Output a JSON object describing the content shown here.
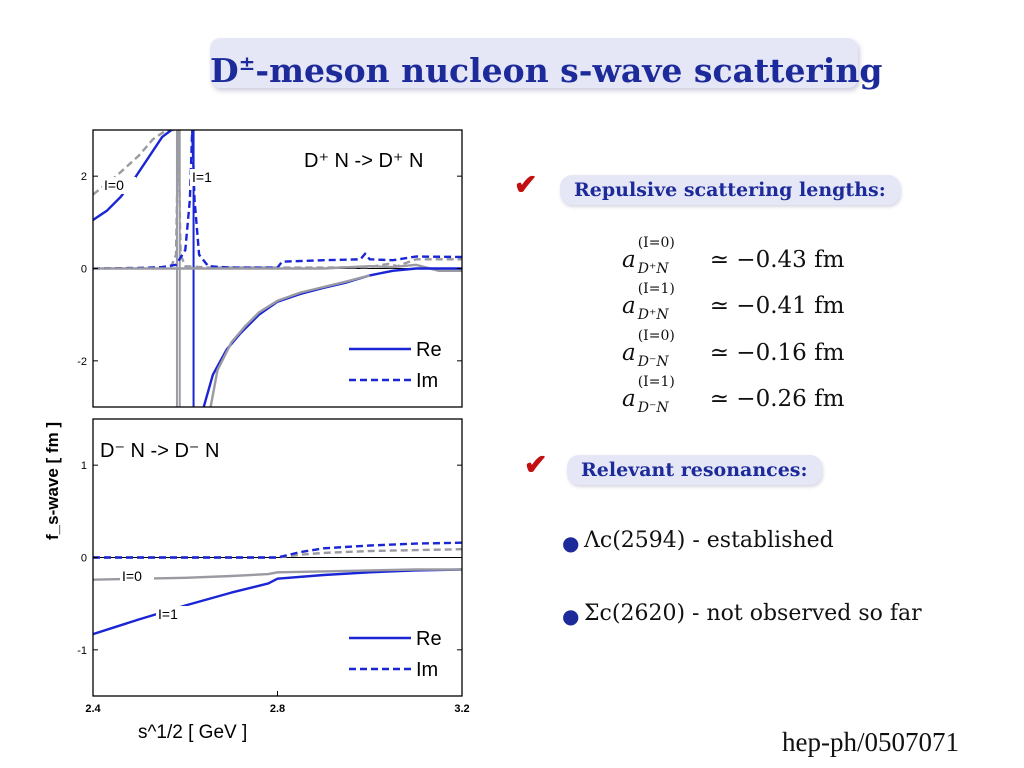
{
  "slide": {
    "title_base": "D",
    "title_sup": "±",
    "title_rest": "-meson nucleon s-wave scattering",
    "reference": "hep-ph/0507071"
  },
  "points": {
    "scattering_header": "Repulsive scattering lengths:",
    "resonance_header": "Relevant resonances:",
    "scattering_lengths": [
      {
        "isospin": "(I=0)",
        "channel": "D⁺N",
        "value": "≃ −0.43 fm"
      },
      {
        "isospin": "(I=1)",
        "channel": "D⁺N",
        "value": "≃ −0.41 fm"
      },
      {
        "isospin": "(I=0)",
        "channel": "D⁻N",
        "value": "≃ −0.16 fm"
      },
      {
        "isospin": "(I=1)",
        "channel": "D⁻N",
        "value": "≃ −0.26 fm"
      }
    ],
    "resonances": [
      "Λc(2594) - established",
      "Σc(2620) - not observed so far"
    ]
  },
  "colors": {
    "accent": "#1d2a9a",
    "check": "#c21010",
    "pill_bg": "#e5e7f6",
    "curve_blue": "#1a25d6",
    "curve_gray": "#9a9aa2"
  },
  "chart_data": [
    {
      "type": "line",
      "panel": "top",
      "title": "D⁺ N  -> D⁺ N",
      "ylabel": "f_s-wave [ fm ]",
      "xlim": [
        2.4,
        3.2
      ],
      "ylim": [
        -3.0,
        3.0
      ],
      "yticks": [
        2,
        0,
        -2
      ],
      "ytick_labels": [
        "2",
        "0",
        "-2"
      ],
      "grid": false,
      "legend": {
        "position": "bottom-right",
        "entries": [
          "Re",
          "Im"
        ]
      },
      "annotations": [
        "I=0",
        "I=1"
      ],
      "series": [
        {
          "kind": "gray",
          "style": "dash",
          "x": [
            2.4,
            2.45,
            2.5,
            2.53,
            2.56,
            2.585
          ],
          "y": [
            1.6,
            2.0,
            2.45,
            2.8,
            3.0,
            3.0
          ]
        },
        {
          "kind": "blue",
          "style": "solid",
          "x": [
            2.4,
            2.43,
            2.46,
            2.49,
            2.52,
            2.55,
            2.57
          ],
          "y": [
            1.05,
            1.25,
            1.55,
            1.95,
            2.4,
            2.85,
            3.0
          ]
        },
        {
          "kind": "gray",
          "style": "dash",
          "x": [
            2.4,
            2.5,
            2.55,
            2.57,
            2.58,
            2.585,
            2.59,
            2.6,
            2.65,
            2.7,
            2.8,
            2.9,
            3.0,
            3.04,
            3.06,
            3.1,
            3.2
          ],
          "y": [
            0,
            0.01,
            0.02,
            0.05,
            0.3,
            3.0,
            0.3,
            0.05,
            0.02,
            0.02,
            0.02,
            0.02,
            0.03,
            0.1,
            0.05,
            0.2,
            0.2
          ]
        },
        {
          "kind": "blue",
          "style": "dash",
          "x": [
            2.4,
            2.5,
            2.55,
            2.58,
            2.6,
            2.61,
            2.615,
            2.62,
            2.63,
            2.65,
            2.7,
            2.8,
            2.81,
            2.9,
            2.98,
            2.99,
            3.0,
            3.05,
            3.1,
            3.2
          ],
          "y": [
            0,
            0.01,
            0.03,
            0.08,
            0.4,
            1.5,
            3.0,
            1.5,
            0.3,
            0.05,
            0.02,
            0.02,
            0.15,
            0.18,
            0.2,
            0.32,
            0.2,
            0.18,
            0.26,
            0.25
          ]
        },
        {
          "kind": "gray",
          "style": "solid",
          "x": [
            2.4,
            2.5,
            2.58,
            2.6,
            2.65,
            2.7,
            2.8,
            2.9,
            3.0,
            3.05,
            3.1,
            3.15,
            3.2
          ],
          "y": [
            0,
            0,
            0,
            0,
            0,
            0,
            0,
            0,
            0.05,
            0.03,
            0.08,
            -0.05,
            -0.05
          ]
        },
        {
          "kind": "blue",
          "style": "solid",
          "x": [
            2.64,
            2.66,
            2.69,
            2.72,
            2.76,
            2.8,
            2.85,
            2.9,
            2.95,
            3.0,
            3.05,
            3.1,
            3.2
          ],
          "y": [
            -3.0,
            -2.3,
            -1.75,
            -1.4,
            -1.0,
            -0.72,
            -0.55,
            -0.42,
            -0.3,
            -0.15,
            -0.05,
            0.0,
            0.0
          ]
        },
        {
          "kind": "gray",
          "style": "solid",
          "x": [
            2.655,
            2.67,
            2.7,
            2.73,
            2.76,
            2.8,
            2.85,
            2.9,
            2.95,
            3.0
          ],
          "y": [
            -3.0,
            -2.2,
            -1.6,
            -1.25,
            -0.95,
            -0.7,
            -0.52,
            -0.4,
            -0.28,
            -0.15
          ]
        }
      ],
      "verticals": [
        {
          "kind": "gray",
          "x": 2.582
        },
        {
          "kind": "gray",
          "x": 2.588
        },
        {
          "kind": "blue",
          "x": 2.618
        }
      ]
    },
    {
      "type": "line",
      "panel": "bottom",
      "title": "D⁻ N  -> D⁻ N",
      "xlabel": "s^1/2 [ GeV ]",
      "xlim": [
        2.4,
        3.2
      ],
      "ylim": [
        -1.5,
        1.5
      ],
      "xticks": [
        2.4,
        2.8,
        3.2
      ],
      "xtick_labels": [
        "2.4",
        "2.8",
        "3.2"
      ],
      "yticks": [
        1,
        0,
        -1
      ],
      "ytick_labels": [
        "1",
        "0",
        "-1"
      ],
      "grid": false,
      "legend": {
        "position": "bottom-right",
        "entries": [
          "Re",
          "Im"
        ]
      },
      "annotations": [
        "I=0",
        "I=1"
      ],
      "series": [
        {
          "kind": "blue",
          "style": "solid",
          "x": [
            2.4,
            2.5,
            2.6,
            2.7,
            2.78,
            2.8,
            2.9,
            3.0,
            3.1,
            3.2
          ],
          "y": [
            -0.83,
            -0.67,
            -0.52,
            -0.38,
            -0.28,
            -0.23,
            -0.19,
            -0.16,
            -0.14,
            -0.13
          ]
        },
        {
          "kind": "gray",
          "style": "solid",
          "x": [
            2.4,
            2.5,
            2.6,
            2.7,
            2.78,
            2.8,
            2.9,
            3.0,
            3.1,
            3.2
          ],
          "y": [
            -0.24,
            -0.23,
            -0.22,
            -0.2,
            -0.18,
            -0.16,
            -0.15,
            -0.14,
            -0.13,
            -0.13
          ]
        },
        {
          "kind": "gray",
          "style": "dash",
          "x": [
            2.4,
            2.6,
            2.8,
            2.85,
            2.9,
            3.0,
            3.1,
            3.2
          ],
          "y": [
            0.0,
            0.0,
            0.0,
            0.03,
            0.05,
            0.07,
            0.08,
            0.09
          ]
        },
        {
          "kind": "blue",
          "style": "dash",
          "x": [
            2.4,
            2.6,
            2.8,
            2.85,
            2.9,
            3.0,
            3.1,
            3.2
          ],
          "y": [
            0.0,
            0.0,
            0.0,
            0.06,
            0.1,
            0.13,
            0.15,
            0.16
          ]
        }
      ]
    }
  ]
}
